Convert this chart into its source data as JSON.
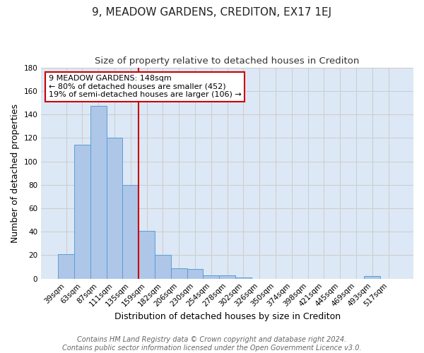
{
  "title": "9, MEADOW GARDENS, CREDITON, EX17 1EJ",
  "subtitle": "Size of property relative to detached houses in Crediton",
  "xlabel": "Distribution of detached houses by size in Crediton",
  "ylabel": "Number of detached properties",
  "categories": [
    "39sqm",
    "63sqm",
    "87sqm",
    "111sqm",
    "135sqm",
    "159sqm",
    "182sqm",
    "206sqm",
    "230sqm",
    "254sqm",
    "278sqm",
    "302sqm",
    "326sqm",
    "350sqm",
    "374sqm",
    "398sqm",
    "421sqm",
    "445sqm",
    "469sqm",
    "493sqm",
    "517sqm"
  ],
  "values": [
    21,
    114,
    147,
    120,
    80,
    41,
    20,
    9,
    8,
    3,
    3,
    1,
    0,
    0,
    0,
    0,
    0,
    0,
    0,
    2,
    0
  ],
  "bar_color": "#aec6e8",
  "bar_edge_color": "#5a9fd4",
  "vline_x": 4.5,
  "vline_color": "#cc0000",
  "annotation_text": "9 MEADOW GARDENS: 148sqm\n← 80% of detached houses are smaller (452)\n19% of semi-detached houses are larger (106) →",
  "annotation_box_color": "#ffffff",
  "annotation_box_edge_color": "#cc0000",
  "ylim": [
    0,
    180
  ],
  "yticks": [
    0,
    20,
    40,
    60,
    80,
    100,
    120,
    140,
    160,
    180
  ],
  "grid_color": "#cccccc",
  "bg_color": "#dce8f5",
  "footer_line1": "Contains HM Land Registry data © Crown copyright and database right 2024.",
  "footer_line2": "Contains public sector information licensed under the Open Government Licence v3.0.",
  "title_fontsize": 11,
  "subtitle_fontsize": 9.5,
  "axis_label_fontsize": 9,
  "tick_fontsize": 7.5,
  "annotation_fontsize": 8,
  "footer_fontsize": 7
}
